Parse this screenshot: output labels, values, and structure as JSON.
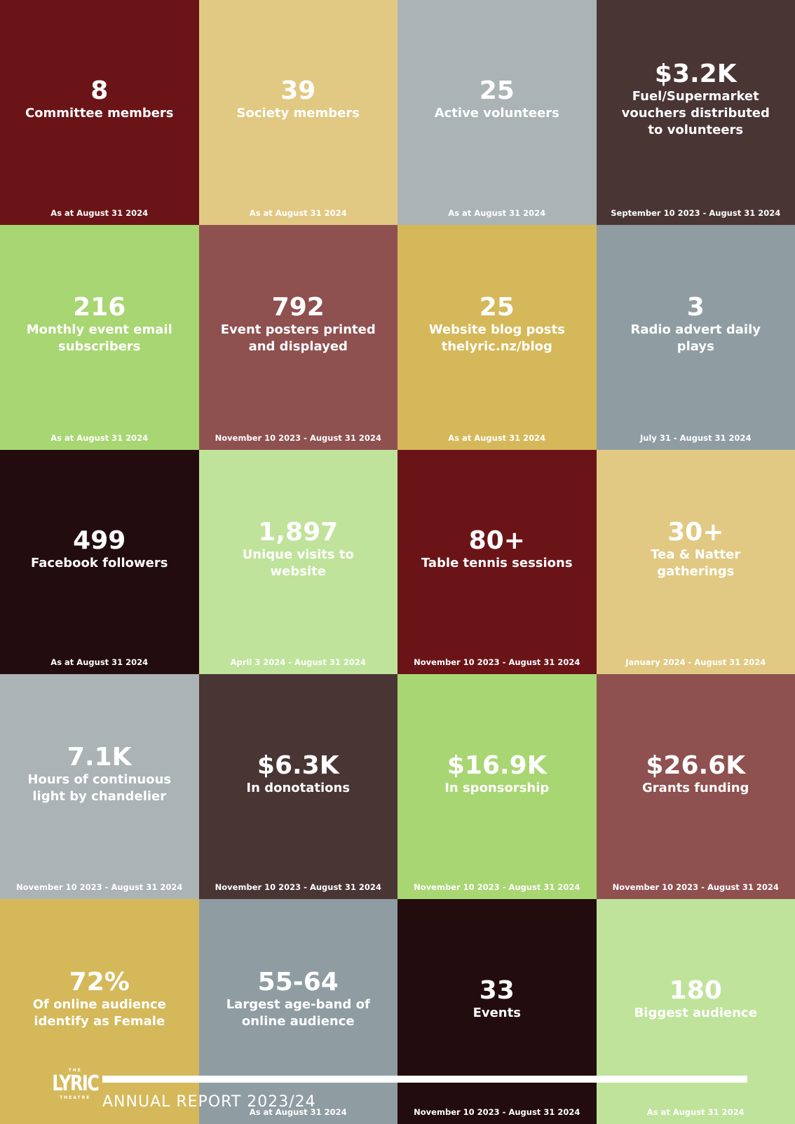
{
  "tiles": [
    {
      "value": "8",
      "label": "Committee members",
      "date": "As at August 31 2024"
    },
    {
      "value": "39",
      "label": "Society members",
      "date": "As at August 31 2024"
    },
    {
      "value": "25",
      "label": "Active volunteers",
      "date": "As at August 31 2024"
    },
    {
      "value": "$3.2K",
      "label": "Fuel/Supermarket vouchers distributed to volunteers",
      "date": "September 10 2023 - August 31 2024"
    },
    {
      "value": "216",
      "label": "Monthly event email subscribers",
      "date": "As at August 31 2024"
    },
    {
      "value": "792",
      "label": "Event posters printed and displayed",
      "date": "November 10 2023 - August 31 2024"
    },
    {
      "value": "25",
      "label": "Website blog posts thelyric.nz/blog",
      "date": "As at August 31 2024"
    },
    {
      "value": "3",
      "label": "Radio advert daily plays",
      "date": "July 31 - August 31 2024"
    },
    {
      "value": "499",
      "label": "Facebook followers",
      "date": "As at August 31 2024"
    },
    {
      "value": "1,897",
      "label": "Unique visits to website",
      "date": "April 3 2024 - August 31 2024"
    },
    {
      "value": "80+",
      "label": "Table tennis sessions",
      "date": "November 10 2023 - August 31 2024"
    },
    {
      "value": "30+",
      "label": "Tea & Natter gatherings",
      "date": "January 2024 - August 31 2024"
    },
    {
      "value": "7.1K",
      "label": "Hours of continuous light by chandelier",
      "date": "November 10 2023 - August 31 2024"
    },
    {
      "value": "$6.3K",
      "label": "In donotations",
      "date": "November 10 2023 - August 31 2024"
    },
    {
      "value": "$16.9K",
      "label": "In sponsorship",
      "date": "November 10 2023 - August 31 2024"
    },
    {
      "value": "$26.6K",
      "label": "Grants funding",
      "date": "November 10 2023 - August 31 2024"
    },
    {
      "value": "72%",
      "label": "Of online audience identify as Female"
    },
    {
      "value": "55-64",
      "label": "Largest age-band of online audience",
      "date": "As at August 31 2024"
    },
    {
      "value": "33",
      "label": "Events",
      "date": "November 10 2023 - August 31 2024"
    },
    {
      "value": "180",
      "label": "Biggest audience",
      "date": "As at August 31 2024"
    }
  ],
  "footer": {
    "logo": {
      "top": "THE",
      "main": "LYRIC",
      "bottom": "THEATRE"
    },
    "title": "ANNUAL REPORT 2023/24"
  }
}
